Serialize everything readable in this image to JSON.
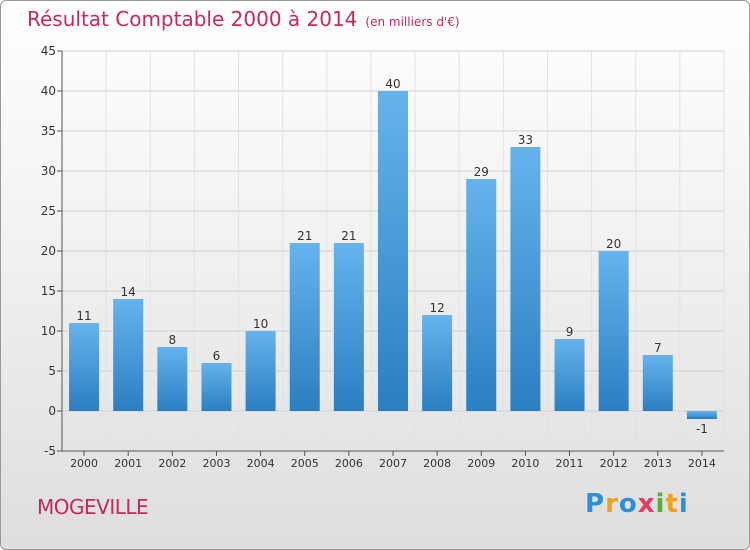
{
  "title": "Résultat Comptable 2000 à 2014",
  "subtitle": "(en milliers d'€)",
  "town": "MOGEVILLE",
  "logo": {
    "letters": [
      {
        "ch": "P",
        "color": "#2e8fd6"
      },
      {
        "ch": "r",
        "color": "#f0a21a"
      },
      {
        "ch": "o",
        "color": "#2e8fd6"
      },
      {
        "ch": "x",
        "color": "#e83a5a"
      },
      {
        "ch": "i",
        "color": "#58b032"
      },
      {
        "ch": "t",
        "color": "#f0a21a"
      },
      {
        "ch": "i",
        "color": "#2e8fd6"
      }
    ]
  },
  "colors": {
    "bar_top": "#66b3ec",
    "bar_bottom": "#2a7fc2",
    "title": "#c8285a"
  },
  "chart_data": {
    "type": "bar",
    "title": "Résultat Comptable 2000 à 2014",
    "ylabel": "(en milliers d'€)",
    "categories": [
      "2000",
      "2001",
      "2002",
      "2003",
      "2004",
      "2005",
      "2006",
      "2007",
      "2008",
      "2009",
      "2010",
      "2011",
      "2012",
      "2013",
      "2014"
    ],
    "values": [
      11,
      14,
      8,
      6,
      10,
      21,
      21,
      40,
      12,
      29,
      33,
      9,
      20,
      7,
      -1
    ],
    "value_labels": [
      "11",
      "14",
      "8",
      "6",
      "10",
      "21",
      "21",
      "40",
      "12",
      "29",
      "33",
      "9",
      "20",
      "7",
      "-1"
    ],
    "ylim": [
      -5,
      45
    ],
    "yticks": [
      -5,
      0,
      5,
      10,
      15,
      20,
      25,
      30,
      35,
      40,
      45
    ],
    "grid": true
  }
}
